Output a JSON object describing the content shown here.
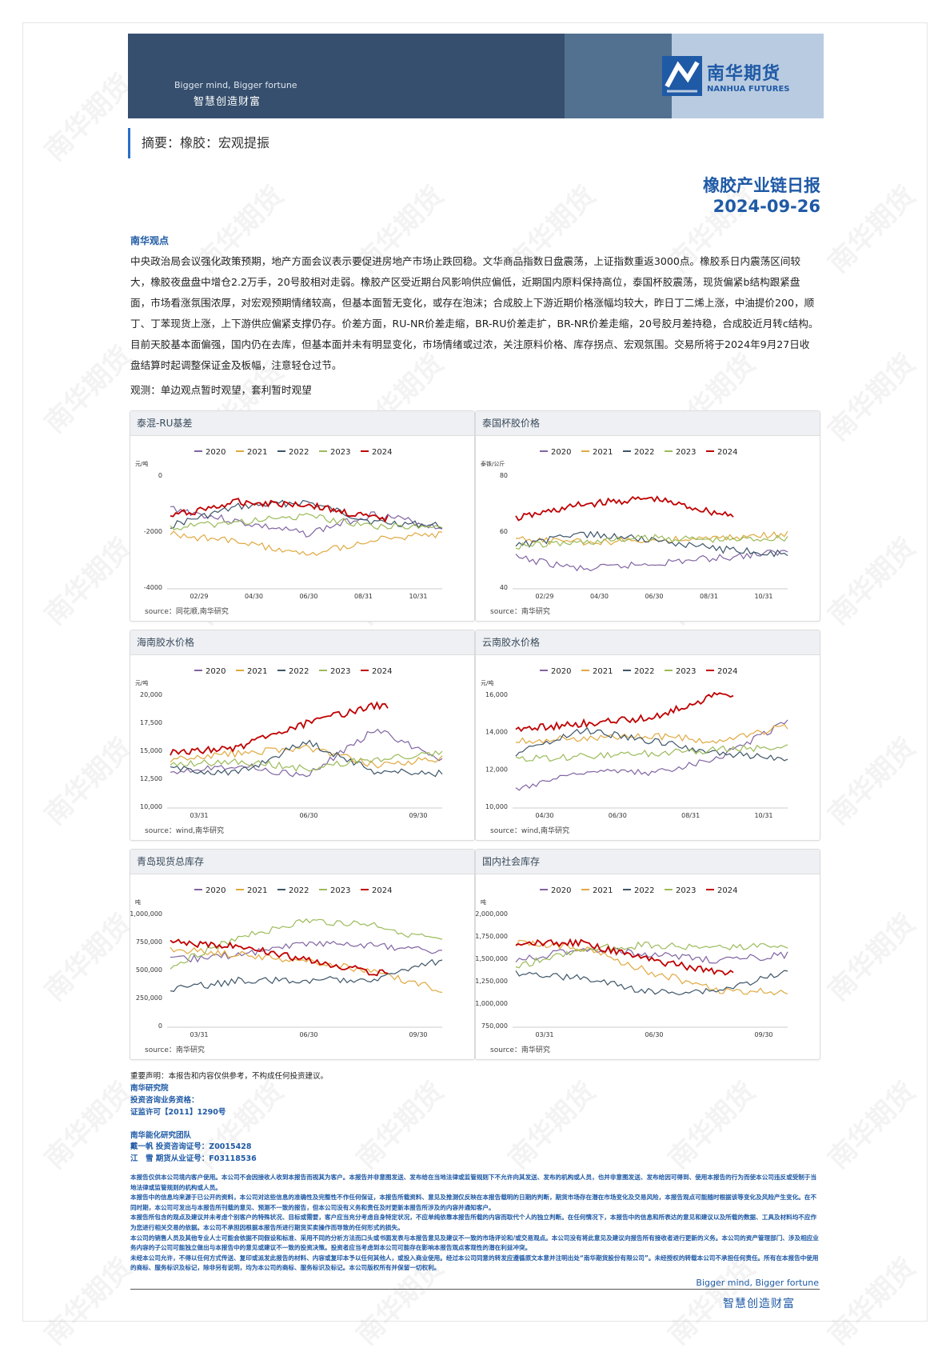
{
  "header": {
    "slogan_en": "Bigger mind, Bigger fortune",
    "slogan_cn": "智慧创造财富",
    "logo_cn": "南华期货",
    "logo_en": "NANHUA FUTURES"
  },
  "summary": "摘要：橡胶：宏观提振",
  "report": {
    "title": "橡胶产业链日报",
    "date": "2024-09-26"
  },
  "view": {
    "heading": "南华观点",
    "body": "中央政治局会议强化政策预期，地产方面会议表示要促进房地产市场止跌回稳。文华商品指数日盘震荡，上证指数重返3000点。橡胶系日内震荡区间较大，橡胶夜盘盘中增仓2.2万手，20号胶相对走弱。橡胶产区受近期台风影响供应偏低，近期国内原料保持高位，泰国杯胶震荡，现货偏紧b结构跟紧盘面，市场看涨氛围浓厚，对宏观预期情绪较高，但基本面暂无变化，或存在泡沫；合成胶上下游近期价格涨幅均较大，昨日丁二烯上涨，中油提价200，顺丁、丁苯现货上涨，上下游供应偏紧支撑仍存。价差方面，RU-NR价差走缩，BR-RU价差走扩，BR-NR价差走缩，20号胶月差持稳，合成胶近月转c结构。目前天胶基本面偏强，国内仍在去库，但基本面并未有明显变化，市场情绪或过浓，关注原料价格、库存拐点、宏观氛围。交易所将于2024年9月27日收盘结算时起调整保证金及板幅，注意轻仓过节。",
    "observation": "观测：单边观点暂时观望，套利暂时观望"
  },
  "charts": [
    {
      "title": "泰混-RU基差",
      "unit": "元/吨",
      "source": "source：同花顺,南华研究",
      "yticks": [
        "0",
        "-2000",
        "-4000"
      ],
      "xticks": [
        "02/29",
        "04/30",
        "06/30",
        "08/31",
        "10/31"
      ]
    },
    {
      "title": "泰国杯胶价格",
      "unit": "泰铢/公斤",
      "source": "source：南华研究",
      "yticks": [
        "80",
        "60",
        "40"
      ],
      "xticks": [
        "02/29",
        "04/30",
        "06/30",
        "08/31",
        "10/31"
      ]
    },
    {
      "title": "海南胶水价格",
      "unit": "元/吨",
      "source": "source：wind,南华研究",
      "yticks": [
        "20,000",
        "17,500",
        "15,000",
        "12,500",
        "10,000"
      ],
      "xticks": [
        "03/31",
        "06/30",
        "09/30"
      ]
    },
    {
      "title": "云南胶水价格",
      "unit": "元/吨",
      "source": "source：wind,南华研究",
      "yticks": [
        "16,000",
        "14,000",
        "12,000",
        "10,000"
      ],
      "xticks": [
        "04/30",
        "06/30",
        "08/31",
        "10/31"
      ]
    },
    {
      "title": "青岛现货总库存",
      "unit": "吨",
      "source": "source：南华研究",
      "yticks": [
        "1,000,000",
        "750,000",
        "500,000",
        "250,000",
        "0"
      ],
      "xticks": [
        "03/31",
        "06/30",
        "09/30"
      ]
    },
    {
      "title": "国内社会库存",
      "unit": "吨",
      "source": "source：南华研究",
      "yticks": [
        "2,000,000",
        "1,750,000",
        "1,500,000",
        "1,250,000",
        "1,000,000",
        "750,000"
      ],
      "xticks": [
        "03/31",
        "06/30",
        "09/30"
      ]
    }
  ],
  "legend": [
    {
      "name": "2020",
      "color": "#8064a2"
    },
    {
      "name": "2021",
      "color": "#e0a940"
    },
    {
      "name": "2022",
      "color": "#3d5568"
    },
    {
      "name": "2023",
      "color": "#9bbb59"
    },
    {
      "name": "2024",
      "color": "#c00000"
    }
  ],
  "footer": {
    "disclaimer_short": "重要声明：本报告和内容仅供参考，不构成任何投资建议。",
    "institute": "南华研究院",
    "qualification": "投资咨询业务资格：",
    "license": "证监许可【2011】1290号",
    "team": "南华能化研究团队",
    "analyst1": "戴一帆 投资咨询证号：Z0015428",
    "analyst2": "江　雪 期货从业证号：F03118536",
    "legal": [
      "本报告仅供本公司境内客户使用。本公司不会因接收人收到本报告而视其为客户。本报告并非意图发送、发布给在当地法律或监管规则下不允许向其发送、发布的机构或人员，也并非意图发送、发布给因可得到、使用本报告的行为而使本公司违反或受制于当地法律或监管规则的机构或人员。",
      "本报告中的信息均来源于已公开的资料，本公司对这些信息的准确性及完整性不作任何保证，本报告所载资料、意见及推测仅反映在本报告载明的日期的判断，期货市场存在潜在市场变化及交易风险，本报告观点可能随时根据该等变化及风险产生变化。在不同时期，本公司可发出与本报告所刊载的意见、预测不一致的报告，但本公司没有义务和责任及时更新本报告所涉及的内容并通知客户。",
      "本报告所包含的观点及建议并未考虑个别客户的特殊状况、目标或需要，客户应当充分考虑自身特定状况，不应单纯依靠本报告所载的内容而取代个人的独立判断。在任何情况下，本报告中的信息和所表达的意见和建议以及所载的数据、工具及材料均不应作为您进行相关交易的依据。本公司不承担因根据本报告所进行期货买卖操作而导致的任何形式的损失。",
      "本公司的销售人员及其他专业人士可能会依据不同假设和标准、采用不同的分析方法而口头或书面发表与本报告意见及建议不一致的市场评论和/或交易观点。本公司没有将此意见及建议向报告所有接收者进行更新的义务。本公司的资产管理部门、涉及相应业务内容的子公司可能独立做出与本报告中的意见或建议不一致的投资决策。投资者应当考虑到本公司可能存在影响本报告观点客观性的潜在利益冲突。",
      "未经本公司允许，不得以任何方式传送、复印或派发此报告的材料、内容或复印本予以任何其他人，或投入商业使用。经过本公司同意的转发应遵循原文本意并注明出处“南华期货股份有限公司”。未经授权的转载本公司不承担任何责任。所有在本报告中使用的商标、服务标识及标记，除非另有说明，均为本公司的商标、服务标识及标记。本公司版权所有并保留一切权利。"
    ],
    "slogan_en": "Bigger mind, Bigger fortune",
    "slogan_cn": "智慧创造财富"
  },
  "watermark": "南华期货"
}
